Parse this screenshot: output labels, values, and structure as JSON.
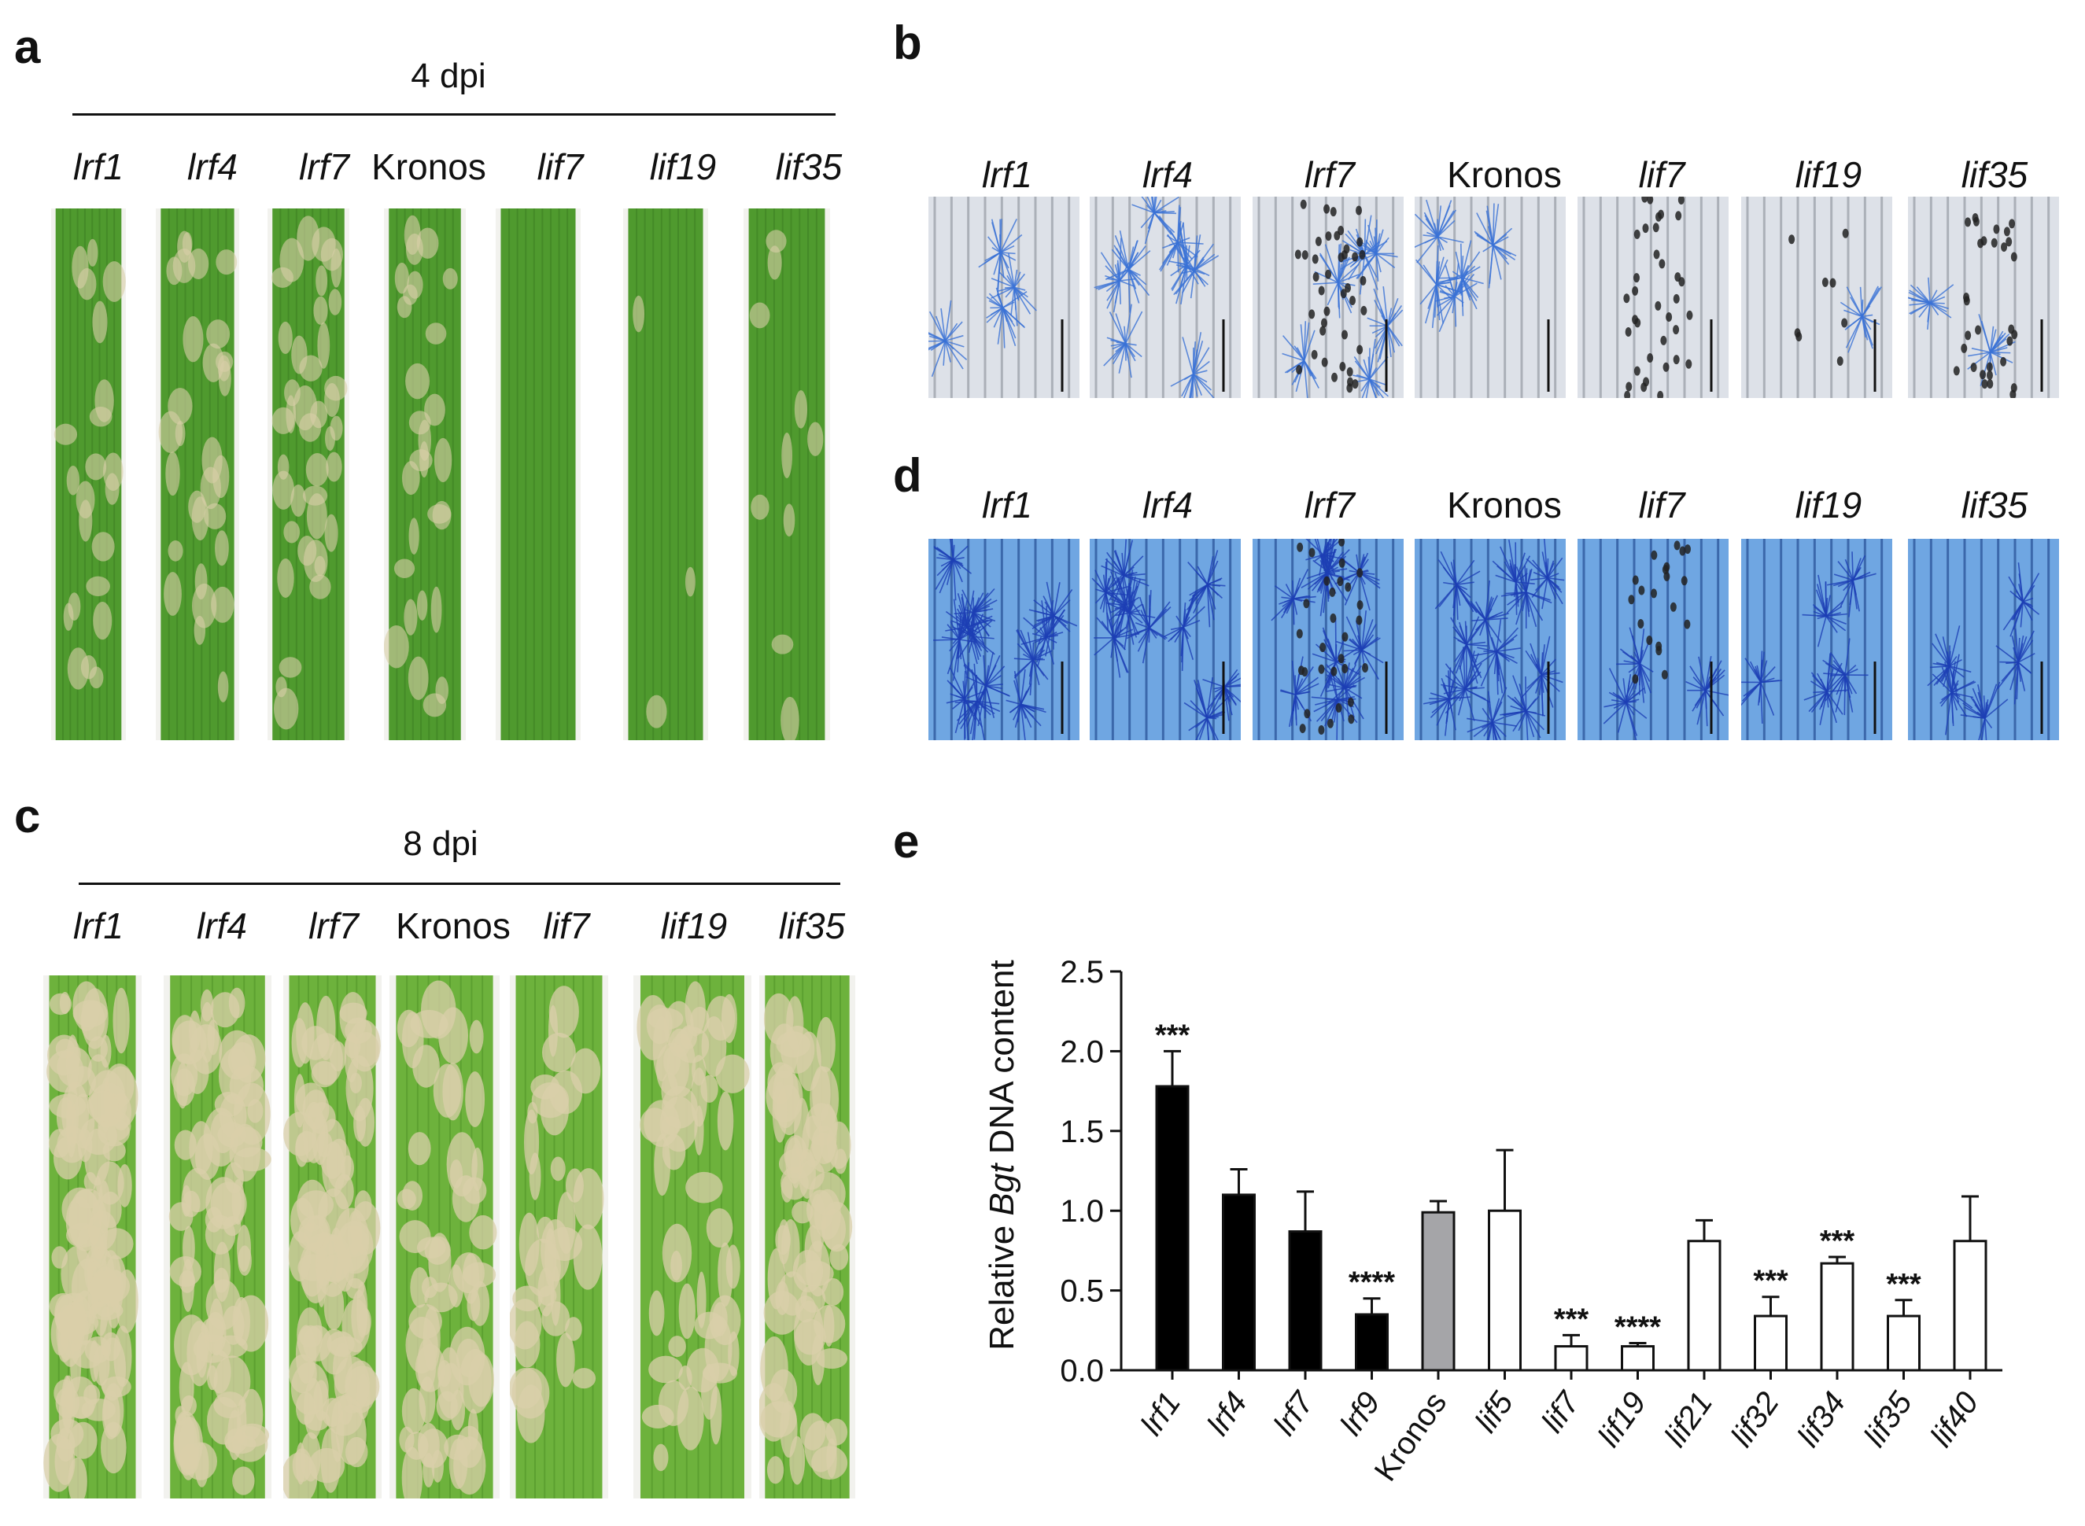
{
  "panels": {
    "a": {
      "label": "a",
      "dpi": "4 dpi"
    },
    "b": {
      "label": "b"
    },
    "c": {
      "label": "c",
      "dpi": "8 dpi"
    },
    "d": {
      "label": "d"
    },
    "e": {
      "label": "e"
    }
  },
  "genotypes": [
    {
      "name": "lrf1",
      "italic": true
    },
    {
      "name": "lrf4",
      "italic": true
    },
    {
      "name": "lrf7",
      "italic": true
    },
    {
      "name": "Kronos",
      "italic": false
    },
    {
      "name": "lif7",
      "italic": true
    },
    {
      "name": "lif19",
      "italic": true
    },
    {
      "name": "lif35",
      "italic": true
    }
  ],
  "colors": {
    "leaf_green": "#4f9a2e",
    "stain_blue": "#2f63c8",
    "bar_black": "#000000",
    "bar_gray": "#a5a5a8"
  },
  "chart_data": {
    "type": "bar",
    "ylabel_prefix": "Relative ",
    "ylabel_italic": "Bgt",
    "ylabel_suffix": " DNA content",
    "ylim": [
      0,
      2.5
    ],
    "yticks": [
      "0.0",
      "0.5",
      "1.0",
      "1.5",
      "2.0",
      "2.5"
    ],
    "categories": [
      "lrf1",
      "lrf4",
      "lrf7",
      "lrf9",
      "Kronos",
      "lif5",
      "lif7",
      "lif19",
      "lif21",
      "lif32",
      "lif34",
      "lif35",
      "lif40"
    ],
    "values": [
      1.78,
      1.1,
      0.87,
      0.35,
      0.99,
      1.0,
      0.15,
      0.15,
      0.81,
      0.34,
      0.67,
      0.34,
      0.81
    ],
    "errors": [
      0.22,
      0.16,
      0.25,
      0.1,
      0.07,
      0.38,
      0.07,
      0.02,
      0.13,
      0.12,
      0.04,
      0.1,
      0.28
    ],
    "fills": [
      "black",
      "black",
      "black",
      "black",
      "gray",
      "white",
      "white",
      "white",
      "white",
      "white",
      "white",
      "white",
      "white"
    ],
    "significance": [
      "***",
      "",
      "",
      "****",
      "",
      "",
      "***",
      "****",
      "",
      "***",
      "***",
      "***",
      ""
    ]
  }
}
